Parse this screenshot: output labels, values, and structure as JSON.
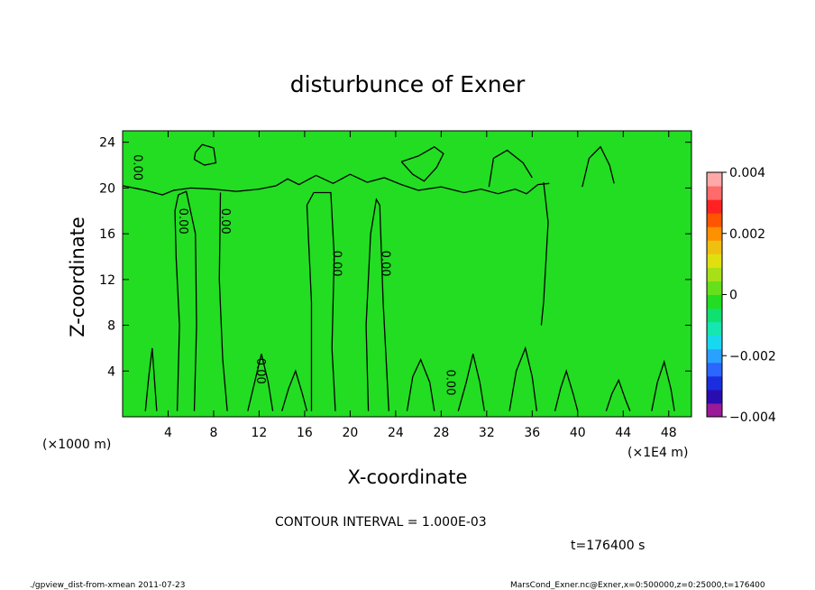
{
  "chart_data": {
    "type": "heatmap",
    "title": "disturbunce of Exner",
    "xlabel": "X-coordinate",
    "ylabel": "Z-coordinate",
    "x_unit_label": "(×1E4 m)",
    "y_unit_label": "(×1000 m)",
    "xlim": [
      0,
      50
    ],
    "ylim": [
      0,
      25
    ],
    "x_ticks": [
      4,
      8,
      12,
      16,
      20,
      24,
      28,
      32,
      36,
      40,
      44,
      48
    ],
    "y_ticks": [
      4,
      8,
      12,
      16,
      20,
      24
    ],
    "colorbar": {
      "min": -0.004,
      "max": 0.004,
      "tick_values": [
        0.004,
        0.002,
        0,
        -0.002,
        -0.004
      ],
      "tick_labels": [
        "0.004",
        "0.002",
        "0",
        "−0.002",
        "−0.004"
      ],
      "colors": [
        "#9a1a9a",
        "#2a0db0",
        "#1a2ee0",
        "#2a66ff",
        "#2aa0ff",
        "#18d8f0",
        "#16e6b0",
        "#10e070",
        "#22dd22",
        "#66e01a",
        "#a8e018",
        "#e0e010",
        "#f0c010",
        "#ff9000",
        "#ff5500",
        "#ff2222",
        "#ff6a6a",
        "#ffa8a8"
      ]
    },
    "contour_labels": [
      {
        "x": 1.0,
        "y": 21.8,
        "text": "0.00"
      },
      {
        "x": 5.0,
        "y": 17.1,
        "text": "0.00"
      },
      {
        "x": 8.7,
        "y": 17.1,
        "text": "0.00"
      },
      {
        "x": 18.5,
        "y": 13.4,
        "text": "0.00"
      },
      {
        "x": 22.8,
        "y": 13.4,
        "text": "0.00"
      },
      {
        "x": 11.8,
        "y": 4.0,
        "text": "0.00"
      },
      {
        "x": 28.5,
        "y": 3.0,
        "text": "0.00"
      }
    ],
    "contour_interval": "CONTOUR INTERVAL = 1.000E-03",
    "time_label": "t=176400 s"
  },
  "footer": {
    "left": "./gpview_dist-from-xmean  2011-07-23",
    "right": "MarsCond_Exner.nc@Exner,x=0:500000,z=0:25000,t=176400"
  },
  "colors": {
    "field": "#22dd22",
    "contour": "#000000"
  }
}
